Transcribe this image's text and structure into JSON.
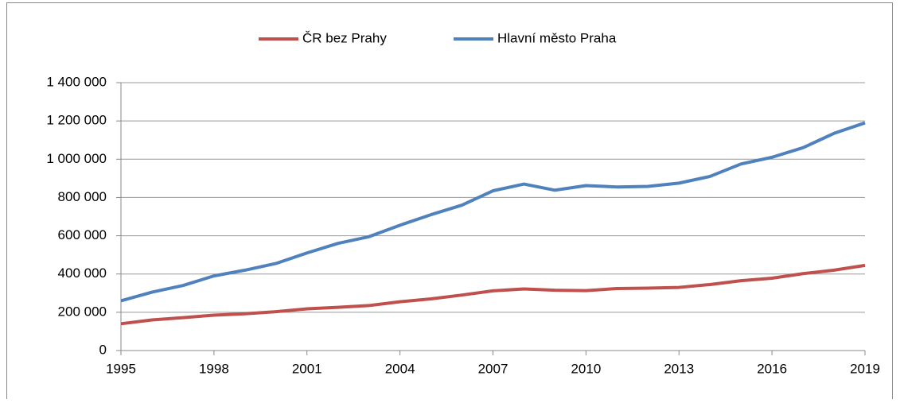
{
  "chart_data": {
    "type": "line",
    "x": [
      1995,
      1996,
      1997,
      1998,
      1999,
      2000,
      2001,
      2002,
      2003,
      2004,
      2005,
      2006,
      2007,
      2008,
      2009,
      2010,
      2011,
      2012,
      2013,
      2014,
      2015,
      2016,
      2017,
      2018,
      2019
    ],
    "series": [
      {
        "name": "ČR bez Prahy",
        "color": "#c0504d",
        "values": [
          140000,
          160000,
          172000,
          185000,
          192000,
          203000,
          218000,
          226000,
          235000,
          255000,
          270000,
          290000,
          312000,
          322000,
          315000,
          313000,
          324000,
          326000,
          330000,
          345000,
          365000,
          378000,
          402000,
          420000,
          445000
        ]
      },
      {
        "name": "Hlavní město Praha",
        "color": "#4f81bd",
        "values": [
          260000,
          305000,
          340000,
          390000,
          420000,
          455000,
          510000,
          560000,
          595000,
          655000,
          710000,
          760000,
          835000,
          870000,
          838000,
          862000,
          855000,
          858000,
          875000,
          910000,
          975000,
          1010000,
          1060000,
          1135000,
          1190000
        ]
      }
    ],
    "xlim": [
      1995,
      2019
    ],
    "xticks": [
      1995,
      1998,
      2001,
      2004,
      2007,
      2010,
      2013,
      2016,
      2019
    ],
    "ylim": [
      0,
      1400000
    ],
    "yticks": [
      0,
      {
        "value": 200000,
        "label": "200 000"
      },
      {
        "value": 400000,
        "label": "400 000"
      },
      {
        "value": 600000,
        "label": "600 000"
      },
      {
        "value": 800000,
        "label": "800 000"
      },
      {
        "value": 1000000,
        "label": "1 000 000"
      },
      {
        "value": 1200000,
        "label": "1 200 000"
      },
      {
        "value": 1400000,
        "label": "1 400 000"
      }
    ],
    "grid": true,
    "legend": "top"
  }
}
